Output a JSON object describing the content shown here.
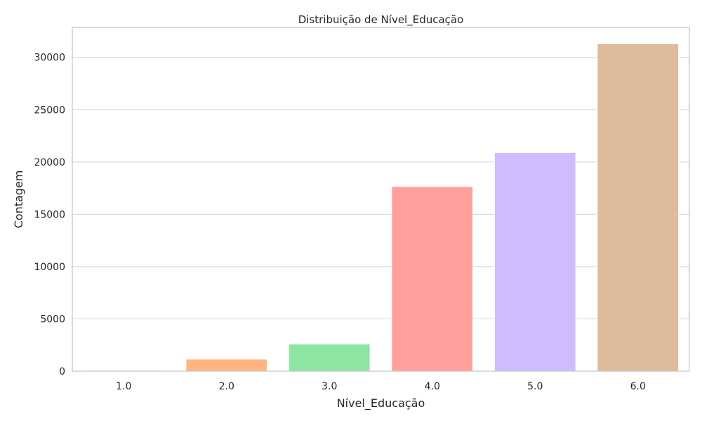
{
  "chart_data": {
    "type": "bar",
    "title": "Distribuição de Nível_Educação",
    "xlabel": "Nível_Educação",
    "ylabel": "Contagem",
    "categories": [
      "1.0",
      "2.0",
      "3.0",
      "4.0",
      "5.0",
      "6.0"
    ],
    "values": [
      90,
      1150,
      2600,
      17650,
      20900,
      31300
    ],
    "yticks": [
      0,
      5000,
      10000,
      15000,
      20000,
      25000,
      30000
    ],
    "ylim": [
      0,
      32865
    ],
    "colors": [
      "#a1c9f4",
      "#ffb482",
      "#8de5a1",
      "#ff9f9b",
      "#d0bbff",
      "#debb9b"
    ],
    "grid": true,
    "legend": false
  }
}
